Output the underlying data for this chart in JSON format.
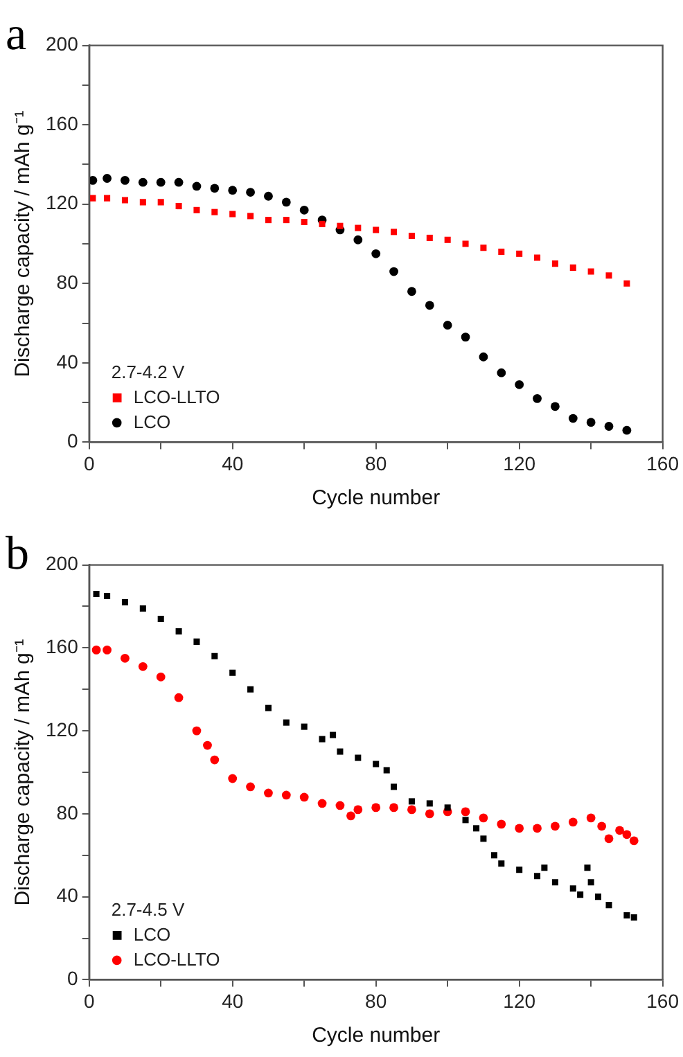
{
  "chart_data": [
    {
      "type": "scatter",
      "title": "a",
      "xlabel": "Cycle number",
      "ylabel": "Discharge capacity / mAh g⁻¹",
      "legend_title": "2.7-4.2 V",
      "legend": "bottom left",
      "grid": false,
      "xlim": [
        0,
        160
      ],
      "xticks": [
        0,
        {
          "value": 20,
          "label": null
        },
        40,
        {
          "value": 60,
          "label": null
        },
        80,
        {
          "value": 100,
          "label": null
        },
        120,
        {
          "value": 140,
          "label": null
        },
        160
      ],
      "ylim": [
        0,
        200
      ],
      "yticks": [
        0,
        {
          "value": 20,
          "label": null
        },
        40,
        {
          "value": 60,
          "label": null
        },
        80,
        {
          "value": 100,
          "label": null
        },
        120,
        {
          "value": 140,
          "label": null
        },
        160,
        {
          "value": 180,
          "label": null
        },
        200
      ],
      "series": [
        {
          "name": "LCO-LLTO",
          "color": "#ff0000",
          "marker": "square",
          "x": [
            1,
            5,
            10,
            15,
            20,
            25,
            30,
            35,
            40,
            45,
            50,
            55,
            60,
            65,
            70,
            75,
            80,
            85,
            90,
            95,
            100,
            105,
            110,
            115,
            120,
            125,
            130,
            135,
            140,
            145,
            150
          ],
          "values": [
            123,
            123,
            122,
            121,
            121,
            119,
            117,
            116,
            115,
            114,
            112,
            112,
            111,
            110,
            109,
            108,
            107,
            106,
            104,
            103,
            102,
            100,
            98,
            96,
            95,
            93,
            90,
            88,
            86,
            84,
            80
          ]
        },
        {
          "name": "LCO",
          "color": "#000000",
          "marker": "circle",
          "x": [
            1,
            5,
            10,
            15,
            20,
            25,
            30,
            35,
            40,
            45,
            50,
            55,
            60,
            65,
            70,
            75,
            80,
            85,
            90,
            95,
            100,
            105,
            110,
            115,
            120,
            125,
            130,
            135,
            140,
            145,
            150
          ],
          "values": [
            132,
            133,
            132,
            131,
            131,
            131,
            129,
            128,
            127,
            126,
            124,
            121,
            117,
            112,
            107,
            102,
            95,
            86,
            76,
            69,
            59,
            53,
            43,
            35,
            29,
            22,
            18,
            12,
            10,
            8,
            6
          ]
        }
      ]
    },
    {
      "type": "scatter",
      "title": "b",
      "xlabel": "Cycle number",
      "ylabel": "Discharge capacity / mAh g⁻¹",
      "legend_title": "2.7-4.5 V",
      "legend": "bottom left",
      "grid": false,
      "xlim": [
        0,
        160
      ],
      "xticks": [
        0,
        {
          "value": 20,
          "label": null
        },
        40,
        {
          "value": 60,
          "label": null
        },
        80,
        {
          "value": 100,
          "label": null
        },
        120,
        {
          "value": 140,
          "label": null
        },
        160
      ],
      "ylim": [
        0,
        200
      ],
      "yticks": [
        0,
        {
          "value": 20,
          "label": null
        },
        40,
        {
          "value": 60,
          "label": null
        },
        80,
        {
          "value": 100,
          "label": null
        },
        120,
        {
          "value": 140,
          "label": null
        },
        160,
        {
          "value": 180,
          "label": null
        },
        200
      ],
      "series": [
        {
          "name": "LCO",
          "color": "#000000",
          "marker": "square",
          "x": [
            2,
            5,
            10,
            15,
            20,
            25,
            30,
            35,
            40,
            45,
            50,
            55,
            60,
            65,
            68,
            70,
            75,
            80,
            83,
            85,
            90,
            95,
            100,
            105,
            108,
            110,
            113,
            115,
            120,
            125,
            127,
            130,
            135,
            137,
            139,
            140,
            142,
            145,
            150,
            152
          ],
          "values": [
            186,
            185,
            182,
            179,
            174,
            168,
            163,
            156,
            148,
            140,
            131,
            124,
            122,
            116,
            118,
            110,
            107,
            104,
            101,
            93,
            86,
            85,
            83,
            77,
            73,
            68,
            60,
            56,
            53,
            50,
            54,
            47,
            44,
            41,
            54,
            47,
            40,
            36,
            31,
            30
          ]
        },
        {
          "name": "LCO-LLTO",
          "color": "#ff0000",
          "marker": "circle",
          "x": [
            2,
            5,
            10,
            15,
            20,
            25,
            30,
            33,
            35,
            40,
            45,
            50,
            55,
            60,
            65,
            70,
            73,
            75,
            80,
            85,
            90,
            95,
            100,
            105,
            110,
            115,
            120,
            125,
            130,
            135,
            140,
            143,
            145,
            148,
            150,
            152
          ],
          "values": [
            159,
            159,
            155,
            151,
            146,
            136,
            120,
            113,
            106,
            97,
            93,
            90,
            89,
            88,
            85,
            84,
            79,
            82,
            83,
            83,
            82,
            80,
            81,
            81,
            78,
            75,
            73,
            73,
            74,
            76,
            78,
            74,
            68,
            72,
            70,
            67
          ]
        }
      ]
    }
  ]
}
